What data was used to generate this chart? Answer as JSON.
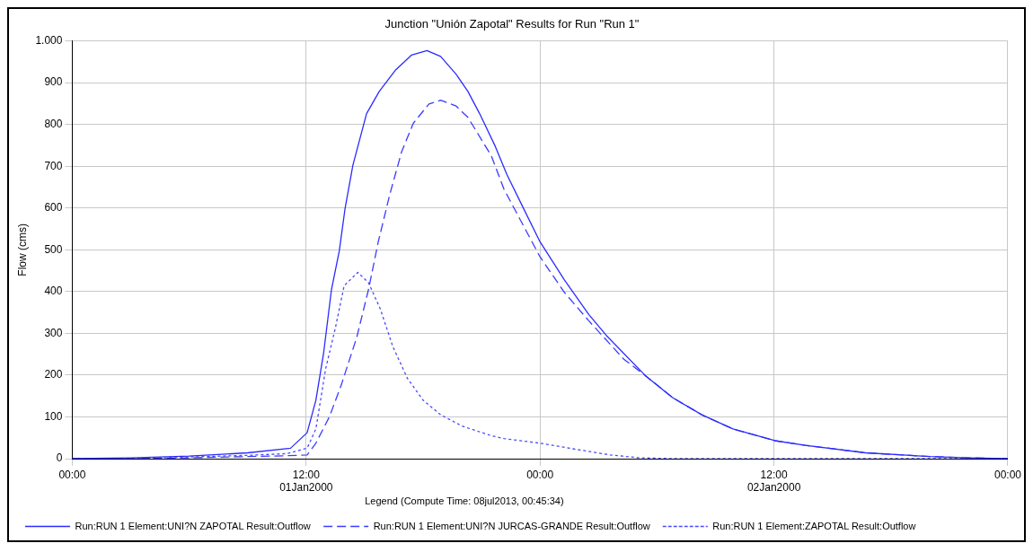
{
  "chart_data": {
    "type": "line",
    "title": "Junction \"Unión Zapotal\" Results for Run \"Run 1\"",
    "ylabel": "Flow (cms)",
    "legend_title": "Legend (Compute Time: 08jul2013, 00:45:34)",
    "legend": "bottom",
    "grid": true,
    "marker": "none",
    "xlim": [
      "2000-01-01T00:00",
      "2000-01-03T00:00"
    ],
    "xticks": [
      {
        "value": "2000-01-01T00:00",
        "label": "00:00"
      },
      {
        "value": "2000-01-01T12:00",
        "label": "12:00\n01Jan2000"
      },
      {
        "value": "2000-01-02T00:00",
        "label": "00:00"
      },
      {
        "value": "2000-01-02T12:00",
        "label": "12:00\n02Jan2000"
      },
      {
        "value": "2000-01-03T00:00",
        "label": "00:00"
      }
    ],
    "ylim": [
      0,
      1000
    ],
    "yticks": [
      0,
      100,
      200,
      300,
      400,
      500,
      600,
      700,
      800,
      900,
      {
        "value": 1000,
        "label": "1.000"
      }
    ],
    "series": [
      {
        "name": "Run:RUN 1 Element:UNI?N ZAPOTAL Result:Outflow",
        "color": "#2b2bff",
        "line_style": "solid",
        "x": [
          "2000-01-01T00:00",
          "2000-01-01T03:00",
          "2000-01-01T06:00",
          "2000-01-01T09:00",
          "2000-01-01T11:12",
          "2000-01-01T12:03",
          "2000-01-01T12:30",
          "2000-01-01T12:54",
          "2000-01-01T13:18",
          "2000-01-01T13:42",
          "2000-01-01T14:00",
          "2000-01-01T14:24",
          "2000-01-01T15:06",
          "2000-01-01T15:45",
          "2000-01-01T16:36",
          "2000-01-01T17:24",
          "2000-01-01T18:12",
          "2000-01-01T18:54",
          "2000-01-01T19:42",
          "2000-01-01T20:18",
          "2000-01-01T20:54",
          "2000-01-01T21:42",
          "2000-01-01T22:18",
          "2000-01-01T23:06",
          "2000-01-02T00:00",
          "2000-01-02T01:15",
          "2000-01-02T02:30",
          "2000-01-02T03:24",
          "2000-01-02T05:24",
          "2000-01-02T06:48",
          "2000-01-02T08:18",
          "2000-01-02T09:54",
          "2000-01-02T12:03",
          "2000-01-02T13:36",
          "2000-01-02T16:42",
          "2000-01-02T20:00",
          "2000-01-02T22:00",
          "2000-01-03T00:00"
        ],
        "values": [
          0,
          2,
          6,
          14,
          25,
          62,
          140,
          254,
          405,
          497,
          600,
          703,
          826,
          879,
          931,
          966,
          977,
          963,
          920,
          879,
          826,
          748,
          680,
          604,
          519,
          428,
          345,
          295,
          199,
          146,
          105,
          71,
          43,
          32,
          14,
          5,
          2,
          0
        ]
      },
      {
        "name": "Run:RUN 1 Element:UNI?N JURCAS-GRANDE Result:Outflow",
        "color": "#3b3bff",
        "line_style": "dashed",
        "x": [
          "2000-01-01T00:00",
          "2000-01-01T03:00",
          "2000-01-01T06:00",
          "2000-01-01T09:00",
          "2000-01-01T11:00",
          "2000-01-01T12:03",
          "2000-01-01T12:30",
          "2000-01-01T13:12",
          "2000-01-01T13:48",
          "2000-01-01T14:36",
          "2000-01-01T15:12",
          "2000-01-01T15:42",
          "2000-01-01T16:18",
          "2000-01-01T16:54",
          "2000-01-01T17:30",
          "2000-01-01T18:18",
          "2000-01-01T18:54",
          "2000-01-01T19:42",
          "2000-01-01T20:18",
          "2000-01-01T21:30",
          "2000-01-01T22:09",
          "2000-01-02T00:00",
          "2000-01-02T01:15",
          "2000-01-02T02:30",
          "2000-01-02T04:18",
          "2000-01-02T05:24",
          "2000-01-02T06:48",
          "2000-01-02T08:18",
          "2000-01-02T09:54",
          "2000-01-02T12:03",
          "2000-01-02T13:36",
          "2000-01-02T16:42",
          "2000-01-02T20:00",
          "2000-01-02T22:00",
          "2000-01-03T00:00"
        ],
        "values": [
          0,
          0,
          2,
          5,
          7,
          9,
          37,
          101,
          176,
          291,
          405,
          519,
          634,
          735,
          803,
          849,
          858,
          844,
          817,
          725,
          645,
          483,
          398,
          330,
          238,
          199,
          146,
          105,
          71,
          43,
          32,
          14,
          5,
          2,
          0
        ]
      },
      {
        "name": "Run:RUN 1 Element:ZAPOTAL Result:Outflow",
        "color": "#4a4aff",
        "line_style": "dotted",
        "x": [
          "2000-01-01T00:00",
          "2000-01-01T03:00",
          "2000-01-01T06:00",
          "2000-01-01T09:00",
          "2000-01-01T11:00",
          "2000-01-01T12:03",
          "2000-01-01T12:30",
          "2000-01-01T13:00",
          "2000-01-01T13:30",
          "2000-01-01T13:57",
          "2000-01-01T14:39",
          "2000-01-01T15:12",
          "2000-01-01T15:48",
          "2000-01-01T16:27",
          "2000-01-01T17:12",
          "2000-01-01T18:00",
          "2000-01-01T18:54",
          "2000-01-01T20:00",
          "2000-01-01T21:30",
          "2000-01-01T22:09",
          "2000-01-02T00:00",
          "2000-01-02T02:00",
          "2000-01-02T03:36",
          "2000-01-02T05:06",
          "2000-01-02T07:00",
          "2000-01-03T00:00"
        ],
        "values": [
          0,
          0,
          4,
          8,
          12,
          25,
          71,
          215,
          313,
          414,
          446,
          421,
          359,
          268,
          192,
          140,
          105,
          78,
          55,
          48,
          37,
          21,
          9,
          2,
          0,
          0
        ]
      }
    ]
  }
}
